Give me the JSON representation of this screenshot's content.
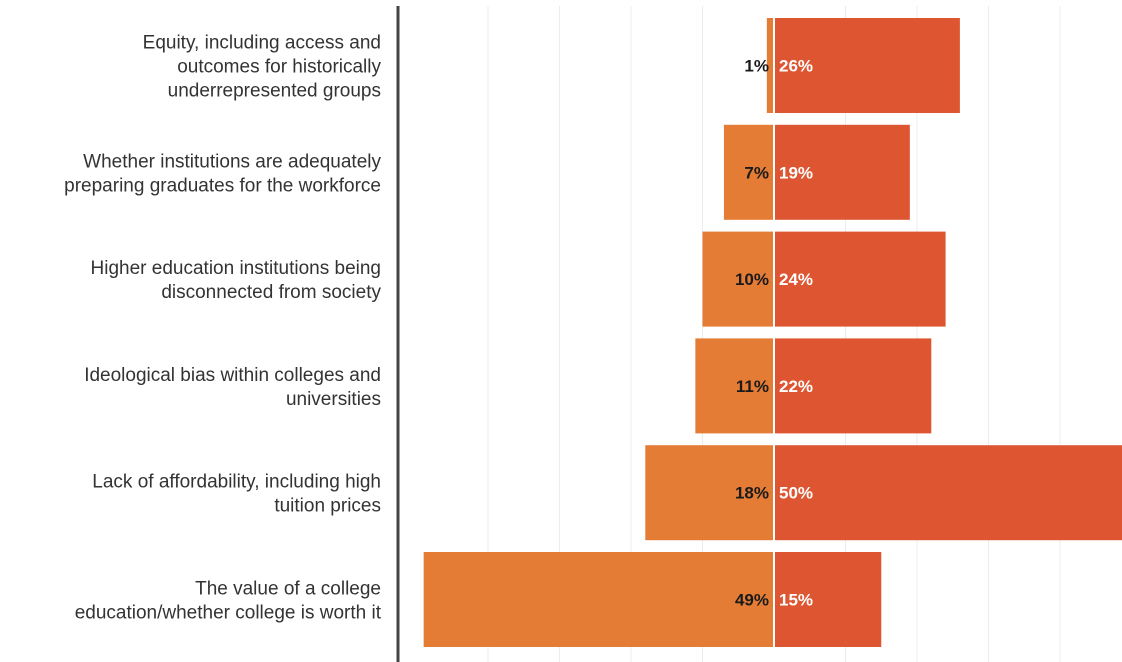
{
  "chart_data": {
    "type": "bar",
    "orientation": "horizontal-diverging",
    "title": "",
    "xlabel": "",
    "ylabel": "",
    "grid": true,
    "legend": "none",
    "categories": [
      [
        "Equity, including access and",
        "outcomes for historically",
        "underrepresented groups"
      ],
      [
        "Whether institutions are adequately",
        "preparing graduates for the workforce"
      ],
      [
        "Higher education institutions being",
        "disconnected from society"
      ],
      [
        "Ideological bias within colleges and",
        "universities"
      ],
      [
        "Lack of affordability, including high",
        "tuition prices"
      ],
      [
        "The value of a college",
        "education/whether college is worth it"
      ]
    ],
    "series": [
      {
        "values": [
          1,
          7,
          10,
          11,
          18,
          49
        ],
        "labels": [
          "1%",
          "7%",
          "10%",
          "11%",
          "18%",
          "49%"
        ],
        "color": "#E57C35",
        "side": "left"
      },
      {
        "values": [
          26,
          19,
          24,
          22,
          50,
          15
        ],
        "labels": [
          "26%",
          "19%",
          "24%",
          "22%",
          "50%",
          "15%"
        ],
        "color": "#DE5631",
        "side": "right"
      }
    ]
  }
}
